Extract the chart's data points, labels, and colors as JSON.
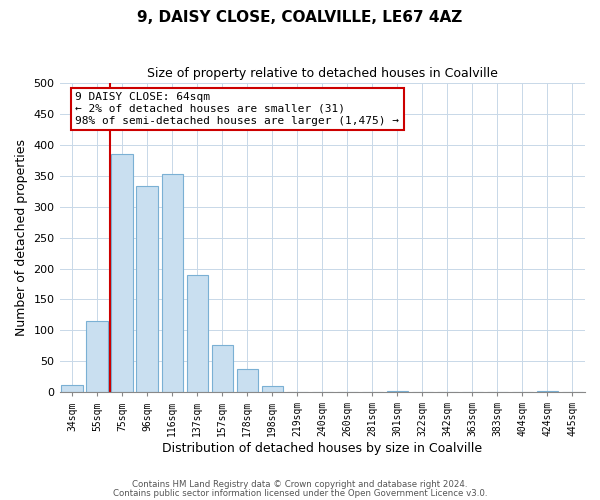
{
  "title": "9, DAISY CLOSE, COALVILLE, LE67 4AZ",
  "subtitle": "Size of property relative to detached houses in Coalville",
  "xlabel": "Distribution of detached houses by size in Coalville",
  "ylabel": "Number of detached properties",
  "bar_labels": [
    "34sqm",
    "55sqm",
    "75sqm",
    "96sqm",
    "116sqm",
    "137sqm",
    "157sqm",
    "178sqm",
    "198sqm",
    "219sqm",
    "240sqm",
    "260sqm",
    "281sqm",
    "301sqm",
    "322sqm",
    "342sqm",
    "363sqm",
    "383sqm",
    "404sqm",
    "424sqm",
    "445sqm"
  ],
  "bar_values": [
    12,
    115,
    385,
    333,
    353,
    190,
    76,
    38,
    10,
    0,
    0,
    0,
    0,
    2,
    0,
    0,
    0,
    0,
    0,
    2,
    0
  ],
  "bar_color": "#c9dff0",
  "bar_edge_color": "#7ab0d4",
  "annotation_title": "9 DAISY CLOSE: 64sqm",
  "annotation_line1": "← 2% of detached houses are smaller (31)",
  "annotation_line2": "98% of semi-detached houses are larger (1,475) →",
  "annotation_box_color": "#ffffff",
  "annotation_box_edge_color": "#cc0000",
  "property_vline_color": "#cc0000",
  "ylim": [
    0,
    500
  ],
  "yticks": [
    0,
    50,
    100,
    150,
    200,
    250,
    300,
    350,
    400,
    450,
    500
  ],
  "footer_line1": "Contains HM Land Registry data © Crown copyright and database right 2024.",
  "footer_line2": "Contains public sector information licensed under the Open Government Licence v3.0.",
  "background_color": "#ffffff",
  "grid_color": "#c8d8e8"
}
